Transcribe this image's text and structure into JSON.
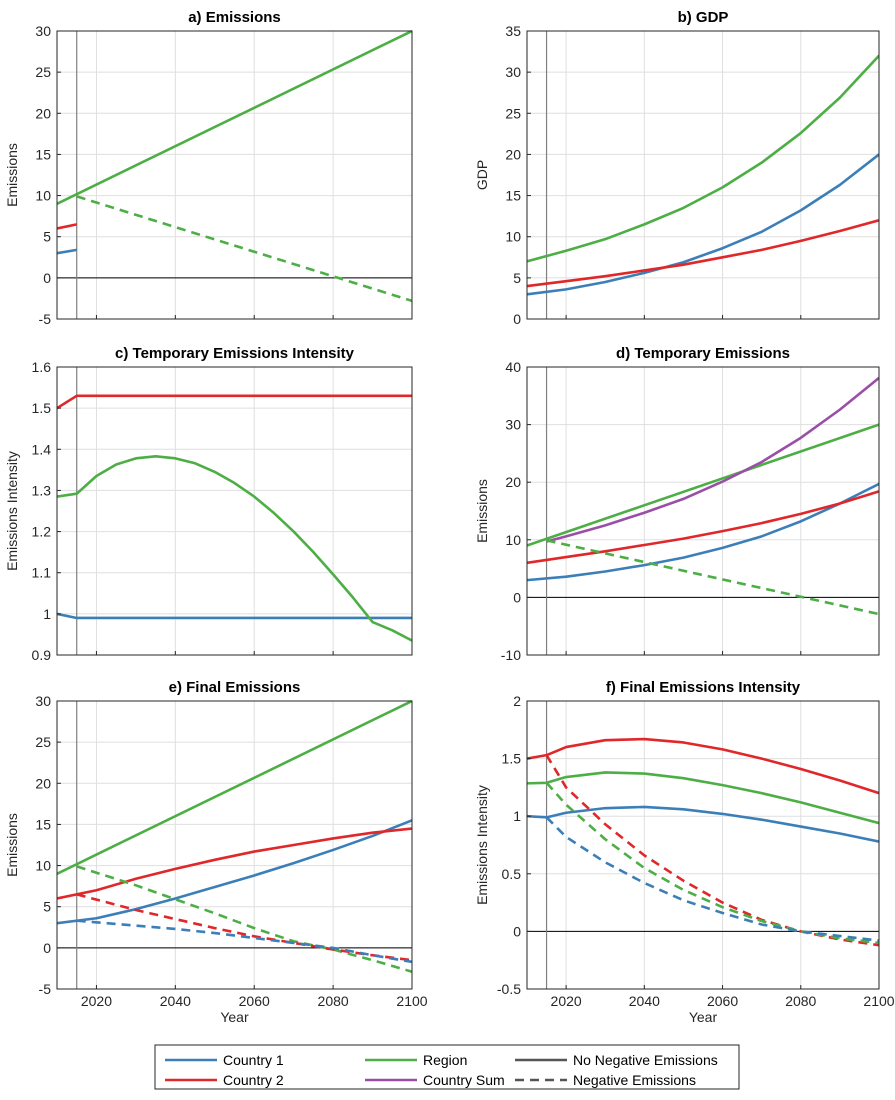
{
  "colors": {
    "country1": "#3c7fb8",
    "country2": "#e0272a",
    "region": "#4dae45",
    "country_sum": "#9a4fa6",
    "grid": "#dfdfdf",
    "axis": "#262626",
    "zero_line": "#000000",
    "start_line": "#808080"
  },
  "legend": {
    "placement": "bottom-center",
    "items": [
      {
        "label": "Country 1",
        "color": "#3c7fb8",
        "dash": false
      },
      {
        "label": "Region",
        "color": "#4dae45",
        "dash": false
      },
      {
        "label": "No Negative Emissions",
        "color": "#555555",
        "dash": false
      },
      {
        "label": "Country 2",
        "color": "#e0272a",
        "dash": false
      },
      {
        "label": "Country Sum",
        "color": "#9a4fa6",
        "dash": false
      },
      {
        "label": "Negative Emissions",
        "color": "#555555",
        "dash": true
      }
    ]
  },
  "chart_data": [
    {
      "type": "line",
      "title": "a) Emissions",
      "xlabel": "",
      "ylabel": "Emissions",
      "xlim": [
        2010,
        2100
      ],
      "ylim": [
        -5,
        30
      ],
      "yticks": [
        -5,
        0,
        5,
        10,
        15,
        20,
        25,
        30
      ],
      "ytick_labels": [
        "-5",
        "0",
        "5",
        "10",
        "15",
        "20",
        "25",
        "30"
      ],
      "xticks": [
        2020,
        2040,
        2060,
        2080,
        2100
      ],
      "show_xtick_labels": false,
      "vline": 2015,
      "hline": 0,
      "grid": true,
      "series": [
        {
          "key": "country1",
          "dash": false,
          "x": [
            2010,
            2015
          ],
          "y": [
            3.0,
            3.4
          ]
        },
        {
          "key": "country2",
          "dash": false,
          "x": [
            2010,
            2015
          ],
          "y": [
            6.0,
            6.5
          ]
        },
        {
          "key": "region",
          "dash": false,
          "x": [
            2010,
            2100
          ],
          "y": [
            9.0,
            30.0
          ]
        },
        {
          "key": "region",
          "dash": true,
          "x": [
            2015,
            2100
          ],
          "y": [
            9.9,
            -2.8
          ]
        }
      ]
    },
    {
      "type": "line",
      "title": "b) GDP",
      "xlabel": "",
      "ylabel": "GDP",
      "xlim": [
        2010,
        2100
      ],
      "ylim": [
        0,
        35
      ],
      "yticks": [
        0,
        5,
        10,
        15,
        20,
        25,
        30,
        35
      ],
      "ytick_labels": [
        "0",
        "5",
        "10",
        "15",
        "20",
        "25",
        "30",
        "35"
      ],
      "xticks": [
        2020,
        2040,
        2060,
        2080,
        2100
      ],
      "show_xtick_labels": false,
      "vline": 2015,
      "hline": null,
      "grid": true,
      "series": [
        {
          "key": "country1",
          "dash": false,
          "x": [
            2010,
            2020,
            2030,
            2040,
            2050,
            2060,
            2070,
            2080,
            2090,
            2100
          ],
          "y": [
            3.0,
            3.6,
            4.5,
            5.6,
            6.9,
            8.6,
            10.6,
            13.2,
            16.3,
            20.0
          ]
        },
        {
          "key": "country2",
          "dash": false,
          "x": [
            2010,
            2020,
            2030,
            2040,
            2050,
            2060,
            2070,
            2080,
            2090,
            2100
          ],
          "y": [
            4.0,
            4.6,
            5.2,
            5.9,
            6.6,
            7.5,
            8.4,
            9.5,
            10.7,
            12.0
          ]
        },
        {
          "key": "region",
          "dash": false,
          "x": [
            2010,
            2020,
            2030,
            2040,
            2050,
            2060,
            2070,
            2080,
            2090,
            2100
          ],
          "y": [
            7.0,
            8.3,
            9.7,
            11.5,
            13.5,
            16.0,
            19.0,
            22.6,
            26.9,
            32.0
          ]
        }
      ]
    },
    {
      "type": "line",
      "title": "c) Temporary Emissions Intensity",
      "xlabel": "",
      "ylabel": "Emissions Intensity",
      "xlim": [
        2010,
        2100
      ],
      "ylim": [
        0.9,
        1.6
      ],
      "yticks": [
        0.9,
        1.0,
        1.1,
        1.2,
        1.3,
        1.4,
        1.5,
        1.6
      ],
      "ytick_labels": [
        "0.9",
        "1",
        "1.1",
        "1.2",
        "1.3",
        "1.4",
        "1.5",
        "1.6"
      ],
      "xticks": [
        2020,
        2040,
        2060,
        2080,
        2100
      ],
      "show_xtick_labels": false,
      "vline": 2015,
      "hline": null,
      "grid": true,
      "series": [
        {
          "key": "country1",
          "dash": false,
          "x": [
            2010,
            2015,
            2100
          ],
          "y": [
            1.0,
            0.99,
            0.99
          ]
        },
        {
          "key": "country2",
          "dash": false,
          "x": [
            2010,
            2015,
            2100
          ],
          "y": [
            1.5,
            1.53,
            1.53
          ]
        },
        {
          "key": "region",
          "dash": false,
          "x": [
            2010,
            2015,
            2020,
            2025,
            2030,
            2035,
            2040,
            2045,
            2050,
            2055,
            2060,
            2065,
            2070,
            2075,
            2080,
            2085,
            2090,
            2095,
            2100
          ],
          "y": [
            1.285,
            1.292,
            1.335,
            1.363,
            1.378,
            1.383,
            1.378,
            1.366,
            1.345,
            1.318,
            1.285,
            1.245,
            1.2,
            1.15,
            1.096,
            1.04,
            0.98,
            0.96,
            0.935
          ]
        }
      ]
    },
    {
      "type": "line",
      "title": "d) Temporary Emissions",
      "xlabel": "",
      "ylabel": "Emissions",
      "xlim": [
        2010,
        2100
      ],
      "ylim": [
        -10,
        40
      ],
      "yticks": [
        -10,
        0,
        10,
        20,
        30,
        40
      ],
      "ytick_labels": [
        "-10",
        "0",
        "10",
        "20",
        "30",
        "40"
      ],
      "xticks": [
        2020,
        2040,
        2060,
        2080,
        2100
      ],
      "show_xtick_labels": false,
      "vline": 2015,
      "hline": 0,
      "grid": true,
      "series": [
        {
          "key": "country1",
          "dash": false,
          "x": [
            2010,
            2020,
            2030,
            2040,
            2050,
            2060,
            2070,
            2080,
            2090,
            2100
          ],
          "y": [
            3.0,
            3.6,
            4.5,
            5.6,
            6.9,
            8.6,
            10.6,
            13.2,
            16.3,
            19.7
          ]
        },
        {
          "key": "country2",
          "dash": false,
          "x": [
            2010,
            2020,
            2030,
            2040,
            2050,
            2060,
            2070,
            2080,
            2090,
            2100
          ],
          "y": [
            6.0,
            7.0,
            8.0,
            9.1,
            10.2,
            11.5,
            12.9,
            14.5,
            16.3,
            18.4
          ]
        },
        {
          "key": "region",
          "dash": false,
          "x": [
            2010,
            2100
          ],
          "y": [
            9.0,
            30.0
          ]
        },
        {
          "key": "country_sum",
          "dash": false,
          "x": [
            2015,
            2020,
            2030,
            2040,
            2050,
            2060,
            2070,
            2080,
            2090,
            2100
          ],
          "y": [
            9.7,
            10.6,
            12.5,
            14.7,
            17.1,
            20.1,
            23.5,
            27.7,
            32.6,
            38.1
          ]
        },
        {
          "key": "region",
          "dash": true,
          "x": [
            2015,
            2100
          ],
          "y": [
            9.9,
            -2.9
          ]
        }
      ]
    },
    {
      "type": "line",
      "title": "e) Final Emissions",
      "xlabel": "Year",
      "ylabel": "Emissions",
      "xlim": [
        2010,
        2100
      ],
      "ylim": [
        -5,
        30
      ],
      "yticks": [
        -5,
        0,
        5,
        10,
        15,
        20,
        25,
        30
      ],
      "ytick_labels": [
        "-5",
        "0",
        "5",
        "10",
        "15",
        "20",
        "25",
        "30"
      ],
      "xticks": [
        2020,
        2040,
        2060,
        2080,
        2100
      ],
      "show_xtick_labels": true,
      "vline": 2015,
      "hline": 0,
      "grid": true,
      "series": [
        {
          "key": "country1",
          "dash": false,
          "x": [
            2010,
            2020,
            2030,
            2040,
            2050,
            2060,
            2070,
            2080,
            2090,
            2100
          ],
          "y": [
            3.0,
            3.6,
            4.7,
            6.0,
            7.4,
            8.8,
            10.3,
            11.9,
            13.6,
            15.5
          ]
        },
        {
          "key": "country2",
          "dash": false,
          "x": [
            2010,
            2020,
            2030,
            2040,
            2050,
            2060,
            2070,
            2080,
            2090,
            2100
          ],
          "y": [
            6.0,
            7.0,
            8.4,
            9.6,
            10.7,
            11.7,
            12.5,
            13.3,
            14.0,
            14.5
          ]
        },
        {
          "key": "region",
          "dash": false,
          "x": [
            2010,
            2100
          ],
          "y": [
            9.0,
            30.0
          ]
        },
        {
          "key": "region",
          "dash": true,
          "x": [
            2015,
            2030,
            2040,
            2050,
            2060,
            2070,
            2080,
            2090,
            2100
          ],
          "y": [
            9.9,
            7.6,
            5.9,
            4.2,
            2.4,
            0.8,
            -0.2,
            -1.5,
            -2.9
          ]
        },
        {
          "key": "country2",
          "dash": true,
          "x": [
            2015,
            2030,
            2040,
            2050,
            2060,
            2070,
            2080,
            2090,
            2100
          ],
          "y": [
            6.5,
            4.6,
            3.5,
            2.4,
            1.4,
            0.6,
            -0.2,
            -0.9,
            -1.5
          ]
        },
        {
          "key": "country1",
          "dash": true,
          "x": [
            2015,
            2030,
            2040,
            2050,
            2060,
            2070,
            2080,
            2090,
            2100
          ],
          "y": [
            3.3,
            2.7,
            2.3,
            1.8,
            1.2,
            0.6,
            0.0,
            -0.9,
            -1.7
          ]
        }
      ]
    },
    {
      "type": "line",
      "title": "f) Final Emissions Intensity",
      "xlabel": "Year",
      "ylabel": "Emissions Intensity",
      "xlim": [
        2010,
        2100
      ],
      "ylim": [
        -0.5,
        2.0
      ],
      "yticks": [
        -0.5,
        0,
        0.5,
        1.0,
        1.5,
        2.0
      ],
      "ytick_labels": [
        "-0.5",
        "0",
        "0.5",
        "1",
        "1.5",
        "2"
      ],
      "xticks": [
        2020,
        2040,
        2060,
        2080,
        2100
      ],
      "show_xtick_labels": true,
      "vline": 2015,
      "hline": 0,
      "grid": true,
      "series": [
        {
          "key": "country2",
          "dash": false,
          "x": [
            2010,
            2015,
            2020,
            2030,
            2040,
            2050,
            2060,
            2070,
            2080,
            2090,
            2100
          ],
          "y": [
            1.5,
            1.53,
            1.6,
            1.66,
            1.67,
            1.64,
            1.58,
            1.5,
            1.41,
            1.31,
            1.2
          ]
        },
        {
          "key": "region",
          "dash": false,
          "x": [
            2010,
            2015,
            2020,
            2030,
            2040,
            2050,
            2060,
            2070,
            2080,
            2090,
            2100
          ],
          "y": [
            1.285,
            1.29,
            1.34,
            1.38,
            1.37,
            1.33,
            1.27,
            1.2,
            1.12,
            1.03,
            0.94
          ]
        },
        {
          "key": "country1",
          "dash": false,
          "x": [
            2010,
            2015,
            2020,
            2030,
            2040,
            2050,
            2060,
            2070,
            2080,
            2090,
            2100
          ],
          "y": [
            1.0,
            0.99,
            1.03,
            1.07,
            1.08,
            1.06,
            1.02,
            0.97,
            0.91,
            0.85,
            0.78
          ]
        },
        {
          "key": "country2",
          "dash": true,
          "x": [
            2015,
            2020,
            2030,
            2040,
            2050,
            2060,
            2070,
            2080,
            2090,
            2100
          ],
          "y": [
            1.53,
            1.25,
            0.93,
            0.66,
            0.44,
            0.25,
            0.1,
            0.0,
            -0.07,
            -0.12
          ]
        },
        {
          "key": "region",
          "dash": true,
          "x": [
            2015,
            2020,
            2030,
            2040,
            2050,
            2060,
            2070,
            2080,
            2090,
            2100
          ],
          "y": [
            1.29,
            1.1,
            0.8,
            0.55,
            0.36,
            0.21,
            0.09,
            0.0,
            -0.06,
            -0.1
          ]
        },
        {
          "key": "country1",
          "dash": true,
          "x": [
            2015,
            2020,
            2030,
            2040,
            2050,
            2060,
            2070,
            2080,
            2090,
            2100
          ],
          "y": [
            0.99,
            0.82,
            0.6,
            0.42,
            0.27,
            0.16,
            0.06,
            0.0,
            -0.04,
            -0.08
          ]
        }
      ]
    }
  ]
}
